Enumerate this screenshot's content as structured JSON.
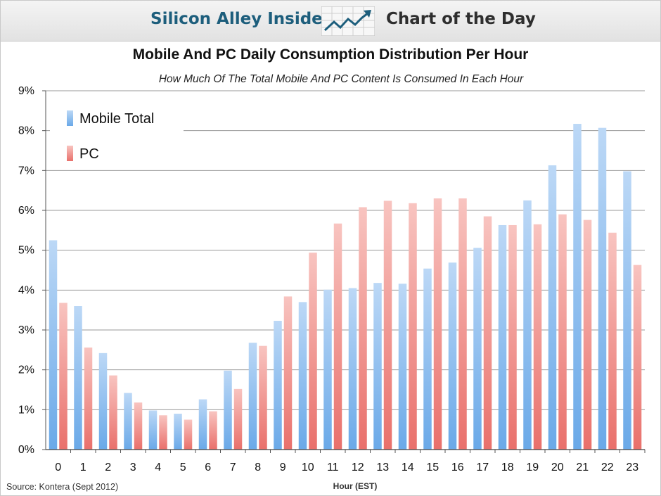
{
  "header": {
    "brand_left": "Silicon Alley Insider",
    "brand_right": "Chart of the Day",
    "logo_icon": "rising-line-chart-icon"
  },
  "source": "Source: Kontera (Sept 2012)",
  "colors": {
    "mobile": "#6aa9e8",
    "pc": "#e9706b",
    "grid": "#9a9a9a",
    "brand": "#1d5e7c"
  },
  "chart_data": {
    "type": "bar",
    "title": "Mobile And PC Daily Consumption Distribution Per Hour",
    "subtitle": "How Much Of The Total Mobile And PC Content Is Consumed In Each Hour",
    "xlabel": "Hour (EST)",
    "ylabel": "",
    "ylim": [
      0,
      9
    ],
    "yticks": [
      "0%",
      "1%",
      "2%",
      "3%",
      "4%",
      "5%",
      "6%",
      "7%",
      "8%",
      "9%"
    ],
    "grid": true,
    "legend_position": "top-left",
    "categories": [
      "0",
      "1",
      "2",
      "3",
      "4",
      "5",
      "6",
      "7",
      "8",
      "9",
      "10",
      "11",
      "12",
      "13",
      "14",
      "15",
      "16",
      "17",
      "18",
      "19",
      "20",
      "21",
      "22",
      "23"
    ],
    "series": [
      {
        "name": "Mobile Total",
        "values": [
          5.25,
          3.6,
          2.42,
          1.42,
          0.98,
          0.9,
          1.26,
          1.98,
          2.68,
          3.23,
          3.7,
          4.01,
          4.05,
          4.18,
          4.16,
          4.54,
          4.69,
          5.06,
          5.63,
          6.25,
          7.13,
          8.17,
          8.07,
          6.98
        ]
      },
      {
        "name": "PC",
        "values": [
          3.68,
          2.56,
          1.86,
          1.18,
          0.86,
          0.75,
          0.96,
          1.52,
          2.6,
          3.84,
          4.94,
          5.67,
          6.08,
          6.24,
          6.18,
          6.3,
          6.3,
          5.85,
          5.63,
          5.65,
          5.9,
          5.76,
          5.44,
          4.63
        ]
      }
    ]
  }
}
